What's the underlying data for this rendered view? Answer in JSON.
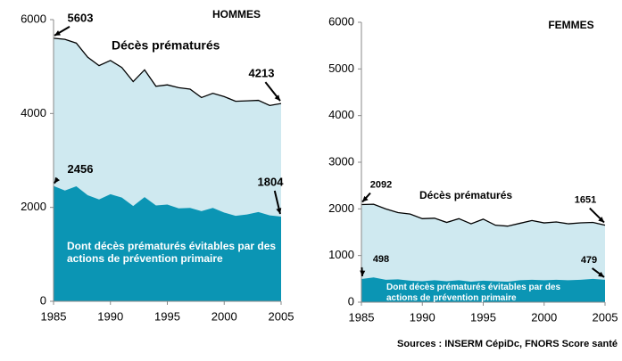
{
  "chart_data": [
    {
      "type": "area",
      "title": "HOMMES",
      "x": [
        1985,
        1986,
        1987,
        1988,
        1989,
        1990,
        1991,
        1992,
        1993,
        1994,
        1995,
        1996,
        1997,
        1998,
        1999,
        2000,
        2001,
        2002,
        2003,
        2004,
        2005
      ],
      "series": [
        {
          "name": "Décès prématurés",
          "color": "#cfe9f0",
          "values": [
            5603,
            5580,
            5500,
            5200,
            5020,
            5130,
            4980,
            4680,
            4930,
            4580,
            4610,
            4550,
            4520,
            4340,
            4430,
            4360,
            4260,
            4270,
            4280,
            4170,
            4213
          ],
          "value_labels": [
            "5603",
            null,
            null,
            null,
            null,
            null,
            null,
            null,
            null,
            null,
            null,
            null,
            null,
            null,
            null,
            null,
            null,
            null,
            null,
            null,
            "4213"
          ]
        },
        {
          "name": "Dont décès prématurés évitables par des actions de prévention primaire",
          "color": "#0b95b4",
          "values": [
            2456,
            2360,
            2450,
            2260,
            2170,
            2280,
            2210,
            2030,
            2220,
            2040,
            2060,
            1980,
            1990,
            1920,
            1990,
            1890,
            1820,
            1850,
            1900,
            1830,
            1804
          ],
          "value_labels": [
            "2456",
            null,
            null,
            null,
            null,
            null,
            null,
            null,
            null,
            null,
            null,
            null,
            null,
            null,
            null,
            null,
            null,
            null,
            null,
            null,
            "1804"
          ]
        }
      ],
      "xlim": [
        1985,
        2005
      ],
      "xticks": [
        1985,
        1990,
        1995,
        2000,
        2005
      ],
      "ylim": [
        0,
        6000
      ],
      "yticks": [
        0,
        2000,
        4000,
        6000
      ]
    },
    {
      "type": "area",
      "title": "FEMMES",
      "x": [
        1985,
        1986,
        1987,
        1988,
        1989,
        1990,
        1991,
        1992,
        1993,
        1994,
        1995,
        1996,
        1997,
        1998,
        1999,
        2000,
        2001,
        2002,
        2003,
        2004,
        2005
      ],
      "series": [
        {
          "name": "Décès prématurés",
          "color": "#cfe9f0",
          "values": [
            2092,
            2100,
            2000,
            1920,
            1890,
            1790,
            1800,
            1710,
            1790,
            1680,
            1780,
            1650,
            1630,
            1690,
            1750,
            1700,
            1720,
            1680,
            1700,
            1710,
            1651
          ],
          "value_labels": [
            "2092",
            null,
            null,
            null,
            null,
            null,
            null,
            null,
            null,
            null,
            null,
            null,
            null,
            null,
            null,
            null,
            null,
            null,
            null,
            null,
            "1651"
          ]
        },
        {
          "name": "Dont décès prématurés évitables par des actions de prévention primaire",
          "color": "#0b95b4",
          "values": [
            498,
            530,
            480,
            490,
            460,
            450,
            470,
            450,
            470,
            440,
            460,
            450,
            440,
            470,
            480,
            470,
            480,
            470,
            480,
            500,
            479
          ],
          "value_labels": [
            "498",
            null,
            null,
            null,
            null,
            null,
            null,
            null,
            null,
            null,
            null,
            null,
            null,
            null,
            null,
            null,
            null,
            null,
            null,
            null,
            "479"
          ]
        }
      ],
      "xlim": [
        1985,
        2005
      ],
      "xticks": [
        1985,
        1990,
        1995,
        2000,
        2005
      ],
      "ylim": [
        0,
        6000
      ],
      "yticks": [
        0,
        1000,
        2000,
        3000,
        4000,
        5000,
        6000
      ]
    }
  ],
  "source": "Sources : INSERM CépiDc, FNORS Score santé"
}
